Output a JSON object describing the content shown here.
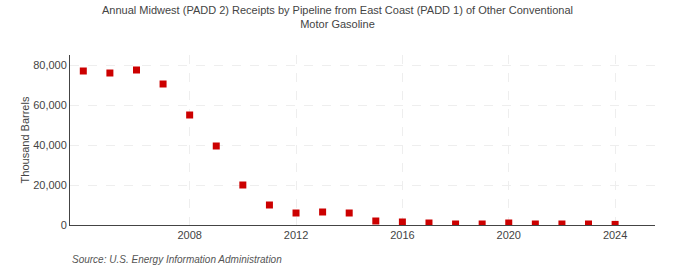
{
  "chart_data": {
    "type": "scatter",
    "title": "Annual Midwest (PADD 2) Receipts by Pipeline from East Coast (PADD 1) of Other Conventional\nMotor Gasoline",
    "ylabel": "Thousand Barrels",
    "source": "Source: U.S. Energy Information Administration",
    "x": [
      2004,
      2005,
      2006,
      2007,
      2008,
      2009,
      2010,
      2011,
      2012,
      2013,
      2014,
      2015,
      2016,
      2017,
      2018,
      2019,
      2020,
      2021,
      2022,
      2023,
      2024
    ],
    "values": [
      77000,
      76000,
      77500,
      70500,
      55000,
      39500,
      20000,
      10000,
      6000,
      6500,
      6000,
      2000,
      1500,
      1000,
      500,
      500,
      1000,
      500,
      500,
      500,
      300
    ],
    "color": "#cc0000",
    "marker": "square",
    "ylim": [
      0,
      85000
    ],
    "yticks": [
      0,
      {
        "value": 20000,
        "label": "20,000"
      },
      {
        "value": 40000,
        "label": "40,000"
      },
      {
        "value": 60000,
        "label": "60,000"
      },
      {
        "value": 80000,
        "label": "80,000"
      }
    ],
    "xlim": [
      2003.5,
      2025.5
    ],
    "xticks": [
      2008,
      2012,
      2016,
      2020,
      2024
    ],
    "grid": true
  }
}
